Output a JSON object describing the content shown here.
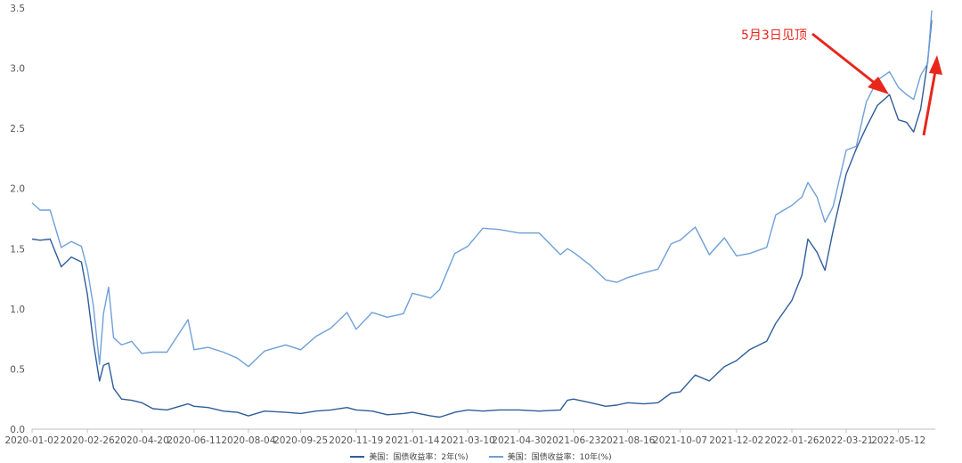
{
  "chart_data": {
    "type": "line",
    "title": "",
    "xlabel": "",
    "ylabel": "",
    "ylim": [
      0,
      3.5
    ],
    "y_ticks": [
      "0.0",
      "0.5",
      "1.0",
      "1.5",
      "2.0",
      "2.5",
      "3.0",
      "3.5"
    ],
    "x_ticks": [
      "2020-01-02",
      "2020-02-26",
      "2020-04-20",
      "2020-06-11",
      "2020-08-04",
      "2020-09-25",
      "2020-11-19",
      "2021-01-14",
      "2021-03-10",
      "2021-04-30",
      "2021-06-23",
      "2021-08-16",
      "2021-10-07",
      "2021-12-02",
      "2022-01-26",
      "2022-03-21",
      "2022-05-12"
    ],
    "grid": "none",
    "legend_position": "bottom",
    "annotation": {
      "text": "5月3日见顶"
    },
    "colors": {
      "series_2y": "#2f5d9a",
      "series_10y": "#6fa0d8",
      "annotation": "#e8261c"
    },
    "series": [
      {
        "name": "美国：国债收益率：2年(%)",
        "points": [
          [
            "2020-01-02",
            1.58
          ],
          [
            "2020-01-10",
            1.57
          ],
          [
            "2020-01-20",
            1.58
          ],
          [
            "2020-01-31",
            1.35
          ],
          [
            "2020-02-10",
            1.43
          ],
          [
            "2020-02-20",
            1.39
          ],
          [
            "2020-02-26",
            1.12
          ],
          [
            "2020-03-03",
            0.72
          ],
          [
            "2020-03-09",
            0.4
          ],
          [
            "2020-03-13",
            0.53
          ],
          [
            "2020-03-18",
            0.55
          ],
          [
            "2020-03-23",
            0.34
          ],
          [
            "2020-03-31",
            0.25
          ],
          [
            "2020-04-10",
            0.24
          ],
          [
            "2020-04-20",
            0.22
          ],
          [
            "2020-05-01",
            0.17
          ],
          [
            "2020-05-15",
            0.16
          ],
          [
            "2020-06-05",
            0.21
          ],
          [
            "2020-06-11",
            0.19
          ],
          [
            "2020-06-25",
            0.18
          ],
          [
            "2020-07-10",
            0.15
          ],
          [
            "2020-07-24",
            0.14
          ],
          [
            "2020-08-04",
            0.11
          ],
          [
            "2020-08-20",
            0.15
          ],
          [
            "2020-09-10",
            0.14
          ],
          [
            "2020-09-25",
            0.13
          ],
          [
            "2020-10-10",
            0.15
          ],
          [
            "2020-10-25",
            0.16
          ],
          [
            "2020-11-10",
            0.18
          ],
          [
            "2020-11-19",
            0.16
          ],
          [
            "2020-12-05",
            0.15
          ],
          [
            "2020-12-20",
            0.12
          ],
          [
            "2021-01-05",
            0.13
          ],
          [
            "2021-01-14",
            0.14
          ],
          [
            "2021-02-01",
            0.11
          ],
          [
            "2021-02-10",
            0.1
          ],
          [
            "2021-02-25",
            0.14
          ],
          [
            "2021-03-10",
            0.16
          ],
          [
            "2021-03-25",
            0.15
          ],
          [
            "2021-04-10",
            0.16
          ],
          [
            "2021-04-30",
            0.16
          ],
          [
            "2021-05-20",
            0.15
          ],
          [
            "2021-06-10",
            0.16
          ],
          [
            "2021-06-17",
            0.24
          ],
          [
            "2021-06-23",
            0.25
          ],
          [
            "2021-07-10",
            0.22
          ],
          [
            "2021-07-25",
            0.19
          ],
          [
            "2021-08-05",
            0.2
          ],
          [
            "2021-08-16",
            0.22
          ],
          [
            "2021-09-01",
            0.21
          ],
          [
            "2021-09-15",
            0.22
          ],
          [
            "2021-09-28",
            0.3
          ],
          [
            "2021-10-07",
            0.31
          ],
          [
            "2021-10-22",
            0.45
          ],
          [
            "2021-11-05",
            0.4
          ],
          [
            "2021-11-20",
            0.52
          ],
          [
            "2021-12-02",
            0.57
          ],
          [
            "2021-12-15",
            0.66
          ],
          [
            "2022-01-01",
            0.73
          ],
          [
            "2022-01-10",
            0.88
          ],
          [
            "2022-01-26",
            1.07
          ],
          [
            "2022-02-05",
            1.28
          ],
          [
            "2022-02-11",
            1.58
          ],
          [
            "2022-02-20",
            1.47
          ],
          [
            "2022-02-28",
            1.32
          ],
          [
            "2022-03-08",
            1.65
          ],
          [
            "2022-03-21",
            2.12
          ],
          [
            "2022-03-31",
            2.33
          ],
          [
            "2022-04-10",
            2.51
          ],
          [
            "2022-04-21",
            2.69
          ],
          [
            "2022-05-03",
            2.78
          ],
          [
            "2022-05-12",
            2.57
          ],
          [
            "2022-05-20",
            2.55
          ],
          [
            "2022-05-27",
            2.47
          ],
          [
            "2022-06-03",
            2.66
          ],
          [
            "2022-06-10",
            3.06
          ],
          [
            "2022-06-14",
            3.4
          ]
        ]
      },
      {
        "name": "美国：国债收益率：10年(%)",
        "points": [
          [
            "2020-01-02",
            1.88
          ],
          [
            "2020-01-10",
            1.82
          ],
          [
            "2020-01-20",
            1.82
          ],
          [
            "2020-01-31",
            1.51
          ],
          [
            "2020-02-10",
            1.56
          ],
          [
            "2020-02-20",
            1.52
          ],
          [
            "2020-02-26",
            1.33
          ],
          [
            "2020-03-03",
            1.02
          ],
          [
            "2020-03-09",
            0.54
          ],
          [
            "2020-03-13",
            0.96
          ],
          [
            "2020-03-18",
            1.18
          ],
          [
            "2020-03-23",
            0.76
          ],
          [
            "2020-03-31",
            0.7
          ],
          [
            "2020-04-10",
            0.73
          ],
          [
            "2020-04-20",
            0.63
          ],
          [
            "2020-05-01",
            0.64
          ],
          [
            "2020-05-15",
            0.64
          ],
          [
            "2020-06-05",
            0.91
          ],
          [
            "2020-06-11",
            0.66
          ],
          [
            "2020-06-25",
            0.68
          ],
          [
            "2020-07-10",
            0.64
          ],
          [
            "2020-07-24",
            0.59
          ],
          [
            "2020-08-04",
            0.52
          ],
          [
            "2020-08-20",
            0.65
          ],
          [
            "2020-09-10",
            0.7
          ],
          [
            "2020-09-25",
            0.66
          ],
          [
            "2020-10-10",
            0.77
          ],
          [
            "2020-10-25",
            0.84
          ],
          [
            "2020-11-10",
            0.97
          ],
          [
            "2020-11-19",
            0.83
          ],
          [
            "2020-12-05",
            0.97
          ],
          [
            "2020-12-20",
            0.93
          ],
          [
            "2021-01-05",
            0.96
          ],
          [
            "2021-01-14",
            1.13
          ],
          [
            "2021-02-01",
            1.09
          ],
          [
            "2021-02-10",
            1.16
          ],
          [
            "2021-02-25",
            1.46
          ],
          [
            "2021-03-10",
            1.52
          ],
          [
            "2021-03-25",
            1.67
          ],
          [
            "2021-04-10",
            1.66
          ],
          [
            "2021-04-30",
            1.63
          ],
          [
            "2021-05-20",
            1.63
          ],
          [
            "2021-06-10",
            1.45
          ],
          [
            "2021-06-17",
            1.5
          ],
          [
            "2021-06-23",
            1.47
          ],
          [
            "2021-07-10",
            1.36
          ],
          [
            "2021-07-25",
            1.24
          ],
          [
            "2021-08-05",
            1.22
          ],
          [
            "2021-08-16",
            1.26
          ],
          [
            "2021-09-01",
            1.3
          ],
          [
            "2021-09-15",
            1.33
          ],
          [
            "2021-09-28",
            1.54
          ],
          [
            "2021-10-07",
            1.57
          ],
          [
            "2021-10-22",
            1.68
          ],
          [
            "2021-11-05",
            1.45
          ],
          [
            "2021-11-20",
            1.59
          ],
          [
            "2021-12-02",
            1.44
          ],
          [
            "2021-12-15",
            1.46
          ],
          [
            "2022-01-01",
            1.51
          ],
          [
            "2022-01-10",
            1.78
          ],
          [
            "2022-01-26",
            1.86
          ],
          [
            "2022-02-05",
            1.93
          ],
          [
            "2022-02-11",
            2.05
          ],
          [
            "2022-02-20",
            1.93
          ],
          [
            "2022-02-28",
            1.72
          ],
          [
            "2022-03-08",
            1.85
          ],
          [
            "2022-03-21",
            2.32
          ],
          [
            "2022-03-31",
            2.35
          ],
          [
            "2022-04-10",
            2.72
          ],
          [
            "2022-04-21",
            2.9
          ],
          [
            "2022-05-03",
            2.97
          ],
          [
            "2022-05-12",
            2.84
          ],
          [
            "2022-05-20",
            2.78
          ],
          [
            "2022-05-27",
            2.74
          ],
          [
            "2022-06-03",
            2.94
          ],
          [
            "2022-06-10",
            3.04
          ],
          [
            "2022-06-14",
            3.48
          ]
        ]
      }
    ]
  }
}
